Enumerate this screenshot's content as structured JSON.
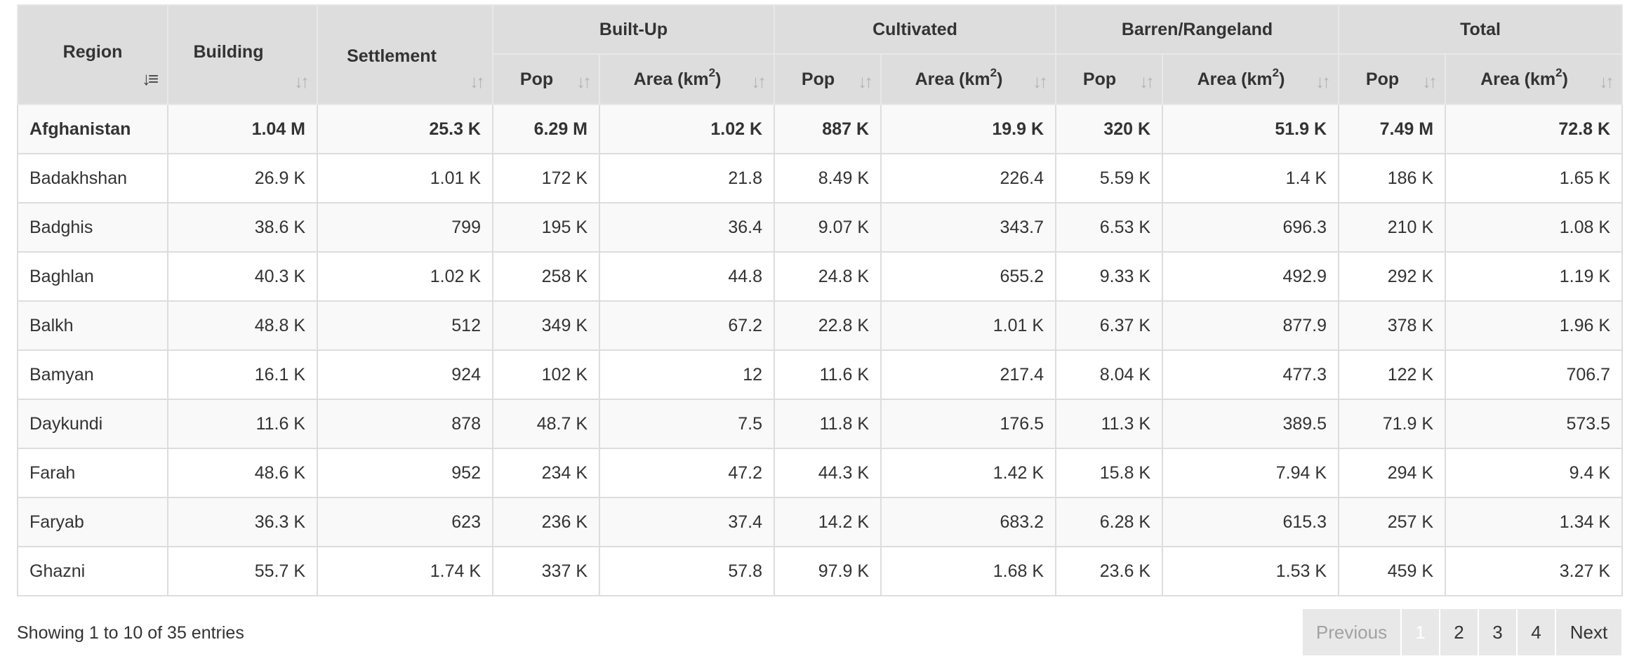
{
  "table": {
    "group_headers": {
      "region": "Region",
      "building": "Building",
      "settlement": "Settlement",
      "builtup": "Built-Up",
      "cultivated": "Cultivated",
      "barren": "Barren/Rangeland",
      "total": "Total"
    },
    "sub_headers": {
      "pop": "Pop",
      "area": "Area (km",
      "area_sup": "2",
      "area_close": ")"
    },
    "sort_icon": "sort-icon",
    "rows": [
      {
        "region": "Afghanistan",
        "building": "1.04 M",
        "settlement": "25.3 K",
        "bu_pop": "6.29 M",
        "bu_area": "1.02 K",
        "cu_pop": "887 K",
        "cu_area": "19.9 K",
        "ba_pop": "320 K",
        "ba_area": "51.9 K",
        "t_pop": "7.49 M",
        "t_area": "72.8 K"
      },
      {
        "region": "Badakhshan",
        "building": "26.9 K",
        "settlement": "1.01 K",
        "bu_pop": "172 K",
        "bu_area": "21.8",
        "cu_pop": "8.49 K",
        "cu_area": "226.4",
        "ba_pop": "5.59 K",
        "ba_area": "1.4 K",
        "t_pop": "186 K",
        "t_area": "1.65 K"
      },
      {
        "region": "Badghis",
        "building": "38.6 K",
        "settlement": "799",
        "bu_pop": "195 K",
        "bu_area": "36.4",
        "cu_pop": "9.07 K",
        "cu_area": "343.7",
        "ba_pop": "6.53 K",
        "ba_area": "696.3",
        "t_pop": "210 K",
        "t_area": "1.08 K"
      },
      {
        "region": "Baghlan",
        "building": "40.3 K",
        "settlement": "1.02 K",
        "bu_pop": "258 K",
        "bu_area": "44.8",
        "cu_pop": "24.8 K",
        "cu_area": "655.2",
        "ba_pop": "9.33 K",
        "ba_area": "492.9",
        "t_pop": "292 K",
        "t_area": "1.19 K"
      },
      {
        "region": "Balkh",
        "building": "48.8 K",
        "settlement": "512",
        "bu_pop": "349 K",
        "bu_area": "67.2",
        "cu_pop": "22.8 K",
        "cu_area": "1.01 K",
        "ba_pop": "6.37 K",
        "ba_area": "877.9",
        "t_pop": "378 K",
        "t_area": "1.96 K"
      },
      {
        "region": "Bamyan",
        "building": "16.1 K",
        "settlement": "924",
        "bu_pop": "102 K",
        "bu_area": "12",
        "cu_pop": "11.6 K",
        "cu_area": "217.4",
        "ba_pop": "8.04 K",
        "ba_area": "477.3",
        "t_pop": "122 K",
        "t_area": "706.7"
      },
      {
        "region": "Daykundi",
        "building": "11.6 K",
        "settlement": "878",
        "bu_pop": "48.7 K",
        "bu_area": "7.5",
        "cu_pop": "11.8 K",
        "cu_area": "176.5",
        "ba_pop": "11.3 K",
        "ba_area": "389.5",
        "t_pop": "71.9 K",
        "t_area": "573.5"
      },
      {
        "region": "Farah",
        "building": "48.6 K",
        "settlement": "952",
        "bu_pop": "234 K",
        "bu_area": "47.2",
        "cu_pop": "44.3 K",
        "cu_area": "1.42 K",
        "ba_pop": "15.8 K",
        "ba_area": "7.94 K",
        "t_pop": "294 K",
        "t_area": "9.4 K"
      },
      {
        "region": "Faryab",
        "building": "36.3 K",
        "settlement": "623",
        "bu_pop": "236 K",
        "bu_area": "37.4",
        "cu_pop": "14.2 K",
        "cu_area": "683.2",
        "ba_pop": "6.28 K",
        "ba_area": "615.3",
        "t_pop": "257 K",
        "t_area": "1.34 K"
      },
      {
        "region": "Ghazni",
        "building": "55.7 K",
        "settlement": "1.74 K",
        "bu_pop": "337 K",
        "bu_area": "57.8",
        "cu_pop": "97.9 K",
        "cu_area": "1.68 K",
        "ba_pop": "23.6 K",
        "ba_area": "1.53 K",
        "t_pop": "459 K",
        "t_area": "3.27 K"
      }
    ]
  },
  "footer": {
    "info": "Showing 1 to 10 of 35 entries",
    "previous": "Previous",
    "pages": [
      "1",
      "2",
      "3",
      "4"
    ],
    "next": "Next",
    "active_page": "1"
  },
  "colors": {
    "header_bg": "#dddddd",
    "border": "#dddddd",
    "stripe": "#f9f9f9",
    "pager_bg": "#e8e8e8"
  }
}
